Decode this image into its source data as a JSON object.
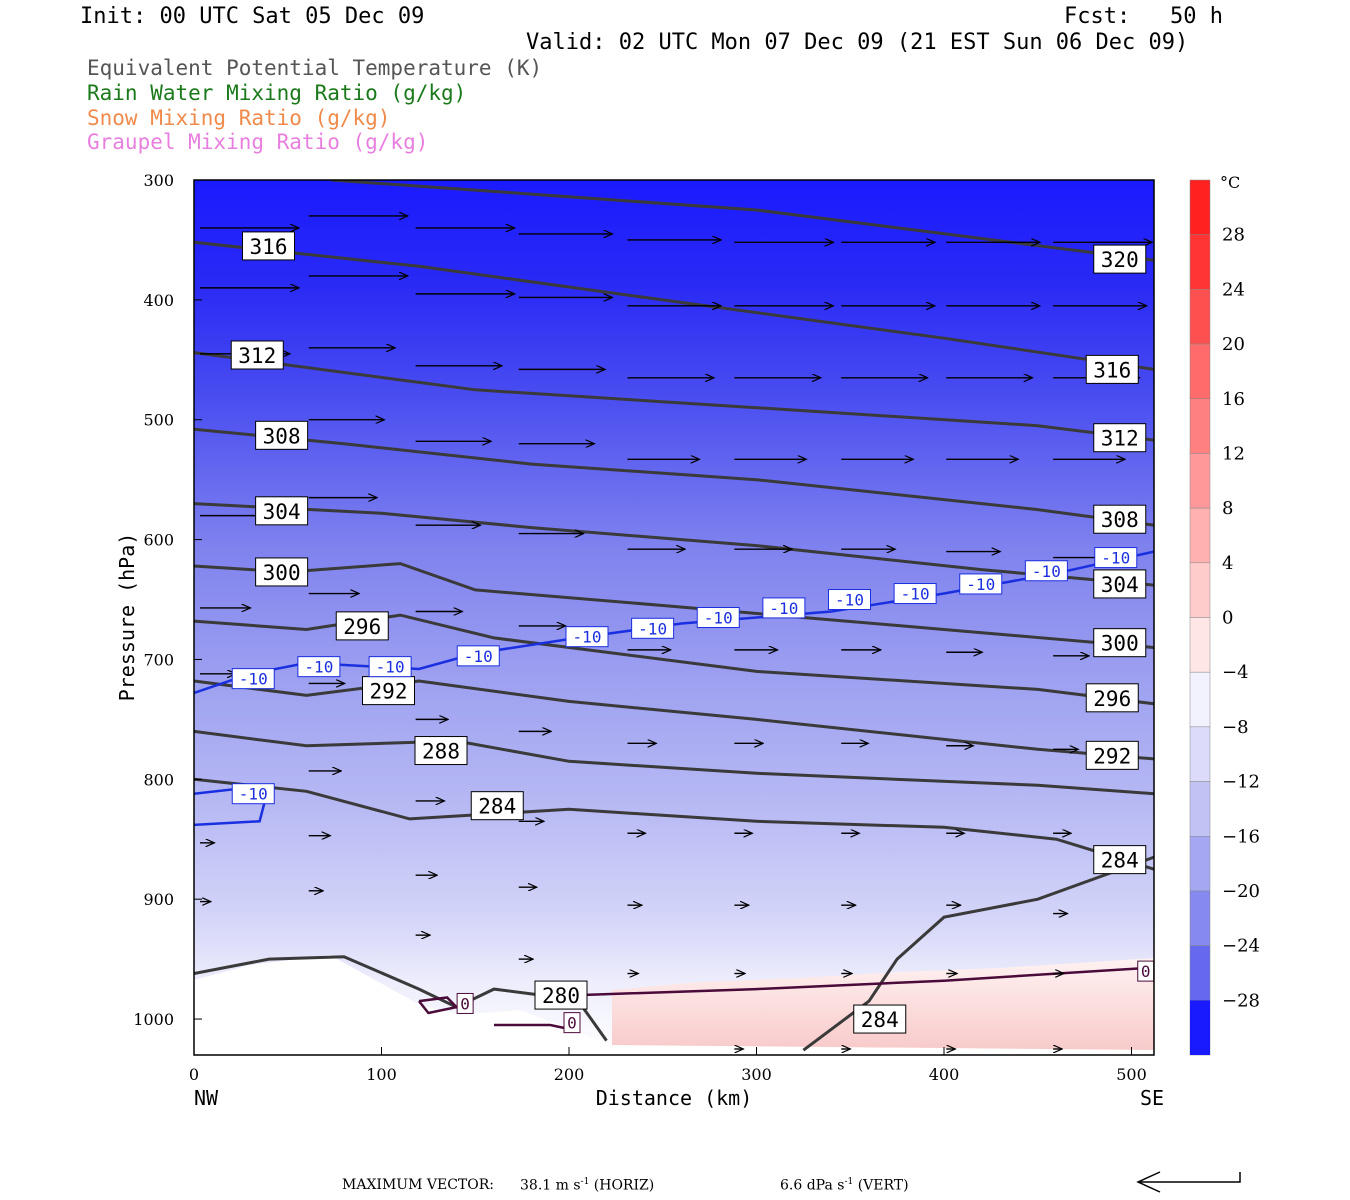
{
  "header": {
    "init": "Init: 00 UTC Sat 05 Dec 09",
    "fcst": "Fcst:   50 h",
    "valid": "Valid: 02 UTC Mon 07 Dec 09 (21 EST Sun 06 Dec 09)"
  },
  "legend": [
    {
      "label": "Equivalent Potential Temperature (K)",
      "color": "#555555"
    },
    {
      "label": "Rain Water Mixing Ratio (g/kg)",
      "color": "#1a7a1a"
    },
    {
      "label": "Snow Mixing Ratio (g/kg)",
      "color": "#f08a4b"
    },
    {
      "label": "Graupel Mixing Ratio (g/kg)",
      "color": "#e87fe0"
    }
  ],
  "footer": {
    "max_vector_label": "MAXIMUM VECTOR:",
    "horiz": "38.1 m s",
    "horiz_unit": "(HORIZ)",
    "vert": "6.6 dPa s",
    "vert_unit": "(VERT)"
  },
  "chart_data": {
    "type": "cross-section contour",
    "xlabel": "Distance (km)",
    "ylabel": "Pressure (hPa)",
    "x_ticks": [
      0,
      100,
      200,
      300,
      400,
      500
    ],
    "y_ticks": [
      300,
      400,
      500,
      600,
      700,
      800,
      900,
      1000
    ],
    "xlim": [
      0,
      512
    ],
    "ylim": [
      1030,
      300
    ],
    "x_endpoints": {
      "left": "NW",
      "right": "SE"
    },
    "colorbar": {
      "unit": "°C",
      "labels": [
        28,
        24,
        20,
        16,
        12,
        8,
        4,
        0,
        -4,
        -8,
        -12,
        -16,
        -20,
        -24,
        -28
      ]
    },
    "theta_e_contours": [
      {
        "value": 320,
        "points": [
          [
            73,
            300
          ],
          [
            300,
            325
          ],
          [
            512,
            367
          ]
        ]
      },
      {
        "value": 316,
        "points": [
          [
            0,
            352
          ],
          [
            120,
            372
          ],
          [
            250,
            400
          ],
          [
            400,
            432
          ],
          [
            512,
            458
          ]
        ]
      },
      {
        "value": 312,
        "points": [
          [
            0,
            444
          ],
          [
            150,
            475
          ],
          [
            300,
            490
          ],
          [
            450,
            505
          ],
          [
            512,
            517
          ]
        ]
      },
      {
        "value": 308,
        "points": [
          [
            0,
            508
          ],
          [
            80,
            520
          ],
          [
            180,
            537
          ],
          [
            300,
            550
          ],
          [
            450,
            575
          ],
          [
            512,
            588
          ]
        ]
      },
      {
        "value": 304,
        "points": [
          [
            0,
            570
          ],
          [
            100,
            578
          ],
          [
            180,
            590
          ],
          [
            300,
            605
          ],
          [
            420,
            625
          ],
          [
            512,
            638
          ]
        ]
      },
      {
        "value": 300,
        "points": [
          [
            0,
            622
          ],
          [
            50,
            627
          ],
          [
            110,
            620
          ],
          [
            150,
            642
          ],
          [
            250,
            655
          ],
          [
            400,
            675
          ],
          [
            512,
            690
          ]
        ]
      },
      {
        "value": 296,
        "points": [
          [
            0,
            668
          ],
          [
            60,
            675
          ],
          [
            110,
            663
          ],
          [
            160,
            682
          ],
          [
            300,
            710
          ],
          [
            450,
            725
          ],
          [
            512,
            737
          ]
        ]
      },
      {
        "value": 292,
        "points": [
          [
            0,
            718
          ],
          [
            60,
            730
          ],
          [
            120,
            718
          ],
          [
            200,
            735
          ],
          [
            300,
            750
          ],
          [
            450,
            775
          ],
          [
            512,
            783
          ]
        ]
      },
      {
        "value": 288,
        "points": [
          [
            0,
            760
          ],
          [
            60,
            772
          ],
          [
            140,
            768
          ],
          [
            200,
            785
          ],
          [
            300,
            795
          ],
          [
            450,
            805
          ],
          [
            512,
            812
          ]
        ]
      },
      {
        "value": 284,
        "points": [
          [
            0,
            800
          ],
          [
            60,
            810
          ],
          [
            115,
            833
          ],
          [
            200,
            825
          ],
          [
            300,
            835
          ],
          [
            400,
            840
          ],
          [
            460,
            850
          ],
          [
            512,
            875
          ]
        ]
      },
      {
        "value": 280,
        "points": [
          [
            0,
            962
          ],
          [
            40,
            950
          ],
          [
            80,
            948
          ],
          [
            120,
            975
          ],
          [
            140,
            990
          ],
          [
            160,
            975
          ],
          [
            185,
            980
          ],
          [
            205,
            985
          ],
          [
            220,
            1018
          ]
        ]
      },
      {
        "value": 284,
        "points": [
          [
            325,
            1026
          ],
          [
            360,
            985
          ],
          [
            375,
            950
          ],
          [
            400,
            915
          ],
          [
            450,
            900
          ],
          [
            512,
            865
          ]
        ]
      }
    ],
    "temperature_minus10": [
      {
        "value": -10,
        "points": [
          [
            0,
            728
          ],
          [
            30,
            712
          ],
          [
            60,
            703
          ],
          [
            120,
            708
          ],
          [
            150,
            695
          ],
          [
            200,
            683
          ],
          [
            260,
            670
          ],
          [
            340,
            660
          ],
          [
            400,
            645
          ],
          [
            460,
            628
          ],
          [
            512,
            610
          ]
        ]
      },
      {
        "value": -10,
        "points": [
          [
            0,
            812
          ],
          [
            40,
            805
          ],
          [
            35,
            835
          ],
          [
            0,
            838
          ]
        ]
      }
    ],
    "temperature_zero": [
      {
        "value": 0,
        "points": [
          [
            205,
            980
          ],
          [
            300,
            975
          ],
          [
            400,
            968
          ],
          [
            512,
            957
          ]
        ]
      },
      {
        "value": 0,
        "points": [
          [
            120,
            985
          ],
          [
            135,
            982
          ],
          [
            140,
            990
          ],
          [
            125,
            995
          ],
          [
            120,
            985
          ]
        ]
      },
      {
        "value": 0,
        "points": [
          [
            160,
            1005
          ],
          [
            190,
            1005
          ],
          [
            205,
            1010
          ]
        ]
      }
    ],
    "contour_labels": [
      {
        "text": "316",
        "x": 28,
        "y": 355
      },
      {
        "text": "320",
        "x": 482,
        "y": 366
      },
      {
        "text": "312",
        "x": 22,
        "y": 446
      },
      {
        "text": "316",
        "x": 478,
        "y": 458
      },
      {
        "text": "308",
        "x": 35,
        "y": 513
      },
      {
        "text": "312",
        "x": 482,
        "y": 515
      },
      {
        "text": "304",
        "x": 35,
        "y": 576
      },
      {
        "text": "308",
        "x": 482,
        "y": 583
      },
      {
        "text": "300",
        "x": 35,
        "y": 627
      },
      {
        "text": "304",
        "x": 482,
        "y": 637
      },
      {
        "text": "296",
        "x": 78,
        "y": 672
      },
      {
        "text": "300",
        "x": 482,
        "y": 686
      },
      {
        "text": "292",
        "x": 92,
        "y": 726
      },
      {
        "text": "296",
        "x": 478,
        "y": 732
      },
      {
        "text": "288",
        "x": 120,
        "y": 776
      },
      {
        "text": "292",
        "x": 478,
        "y": 780
      },
      {
        "text": "284",
        "x": 150,
        "y": 822
      },
      {
        "text": "284",
        "x": 482,
        "y": 867
      },
      {
        "text": "280",
        "x": 184,
        "y": 980
      },
      {
        "text": "284",
        "x": 354,
        "y": 1000
      }
    ],
    "temp_labels": [
      {
        "text": "-10",
        "x": 22,
        "y": 716
      },
      {
        "text": "-10",
        "x": 57,
        "y": 706
      },
      {
        "text": "-10",
        "x": 95,
        "y": 706
      },
      {
        "text": "-10",
        "x": 142,
        "y": 697
      },
      {
        "text": "-10",
        "x": 200,
        "y": 681
      },
      {
        "text": "-10",
        "x": 235,
        "y": 674
      },
      {
        "text": "-10",
        "x": 270,
        "y": 665
      },
      {
        "text": "-10",
        "x": 305,
        "y": 657
      },
      {
        "text": "-10",
        "x": 340,
        "y": 650
      },
      {
        "text": "-10",
        "x": 375,
        "y": 645
      },
      {
        "text": "-10",
        "x": 410,
        "y": 637
      },
      {
        "text": "-10",
        "x": 445,
        "y": 626
      },
      {
        "text": "-10",
        "x": 482,
        "y": 615
      },
      {
        "text": "-10",
        "x": 22,
        "y": 812
      },
      {
        "text": "0",
        "x": 135,
        "y": 987
      },
      {
        "text": "0",
        "x": 192,
        "y": 1003
      },
      {
        "text": "0",
        "x": 498,
        "y": 960
      }
    ],
    "wind_vectors": [
      {
        "x": 0,
        "p": 340,
        "u": 55,
        "w": 0
      },
      {
        "x": 58,
        "p": 330,
        "u": 55,
        "w": 0
      },
      {
        "x": 115,
        "p": 340,
        "u": 55,
        "w": 0
      },
      {
        "x": 170,
        "p": 345,
        "u": 52,
        "w": 0
      },
      {
        "x": 228,
        "p": 350,
        "u": 52,
        "w": 0
      },
      {
        "x": 285,
        "p": 352,
        "u": 55,
        "w": 0
      },
      {
        "x": 342,
        "p": 352,
        "u": 52,
        "w": 0
      },
      {
        "x": 398,
        "p": 352,
        "u": 52,
        "w": 0
      },
      {
        "x": 455,
        "p": 352,
        "u": 55,
        "w": 0
      },
      {
        "x": 0,
        "p": 390,
        "u": 55,
        "w": 0
      },
      {
        "x": 58,
        "p": 380,
        "u": 55,
        "w": 0
      },
      {
        "x": 115,
        "p": 395,
        "u": 55,
        "w": 0
      },
      {
        "x": 170,
        "p": 398,
        "u": 52,
        "w": 0
      },
      {
        "x": 228,
        "p": 405,
        "u": 52,
        "w": 0
      },
      {
        "x": 285,
        "p": 405,
        "u": 55,
        "w": 0
      },
      {
        "x": 342,
        "p": 405,
        "u": 52,
        "w": 0
      },
      {
        "x": 398,
        "p": 405,
        "u": 52,
        "w": 0
      },
      {
        "x": 455,
        "p": 405,
        "u": 52,
        "w": 0
      },
      {
        "x": 0,
        "p": 445,
        "u": 50,
        "w": 0
      },
      {
        "x": 58,
        "p": 440,
        "u": 48,
        "w": 0
      },
      {
        "x": 115,
        "p": 455,
        "u": 48,
        "w": 0
      },
      {
        "x": 170,
        "p": 458,
        "u": 48,
        "w": 0
      },
      {
        "x": 228,
        "p": 465,
        "u": 48,
        "w": 0
      },
      {
        "x": 285,
        "p": 465,
        "u": 48,
        "w": 0
      },
      {
        "x": 342,
        "p": 465,
        "u": 48,
        "w": 0
      },
      {
        "x": 398,
        "p": 465,
        "u": 48,
        "w": 0
      },
      {
        "x": 455,
        "p": 465,
        "u": 48,
        "w": 0
      },
      {
        "x": 58,
        "p": 500,
        "u": 42,
        "w": 0
      },
      {
        "x": 115,
        "p": 518,
        "u": 42,
        "w": 0
      },
      {
        "x": 170,
        "p": 520,
        "u": 42,
        "w": 0
      },
      {
        "x": 228,
        "p": 533,
        "u": 40,
        "w": 0
      },
      {
        "x": 285,
        "p": 533,
        "u": 40,
        "w": 0
      },
      {
        "x": 342,
        "p": 533,
        "u": 40,
        "w": 0
      },
      {
        "x": 398,
        "p": 533,
        "u": 40,
        "w": 0
      },
      {
        "x": 455,
        "p": 533,
        "u": 40,
        "w": 0
      },
      {
        "x": 0,
        "p": 580,
        "u": 38,
        "w": 0
      },
      {
        "x": 58,
        "p": 565,
        "u": 38,
        "w": 0
      },
      {
        "x": 115,
        "p": 588,
        "u": 36,
        "w": 0
      },
      {
        "x": 170,
        "p": 595,
        "u": 36,
        "w": 0
      },
      {
        "x": 228,
        "p": 608,
        "u": 32,
        "w": 0
      },
      {
        "x": 285,
        "p": 608,
        "u": 32,
        "w": 0
      },
      {
        "x": 342,
        "p": 608,
        "u": 30,
        "w": 0
      },
      {
        "x": 398,
        "p": 610,
        "u": 30,
        "w": 0
      },
      {
        "x": 455,
        "p": 615,
        "u": 28,
        "w": 0
      },
      {
        "x": 0,
        "p": 657,
        "u": 28,
        "w": 0
      },
      {
        "x": 58,
        "p": 645,
        "u": 28,
        "w": 0
      },
      {
        "x": 115,
        "p": 660,
        "u": 26,
        "w": 0
      },
      {
        "x": 170,
        "p": 672,
        "u": 26,
        "w": 0
      },
      {
        "x": 228,
        "p": 692,
        "u": 24,
        "w": 0
      },
      {
        "x": 285,
        "p": 692,
        "u": 24,
        "w": 0
      },
      {
        "x": 342,
        "p": 692,
        "u": 22,
        "w": 0
      },
      {
        "x": 398,
        "p": 694,
        "u": 20,
        "w": 0
      },
      {
        "x": 455,
        "p": 697,
        "u": 20,
        "w": 0
      },
      {
        "x": 0,
        "p": 712,
        "u": 20,
        "w": 0
      },
      {
        "x": 58,
        "p": 720,
        "u": 20,
        "w": 0
      },
      {
        "x": 115,
        "p": 750,
        "u": 18,
        "w": 0
      },
      {
        "x": 170,
        "p": 760,
        "u": 18,
        "w": 0
      },
      {
        "x": 228,
        "p": 770,
        "u": 16,
        "w": 0
      },
      {
        "x": 285,
        "p": 770,
        "u": 16,
        "w": 0
      },
      {
        "x": 342,
        "p": 770,
        "u": 15,
        "w": 0
      },
      {
        "x": 398,
        "p": 772,
        "u": 15,
        "w": 0
      },
      {
        "x": 455,
        "p": 775,
        "u": 14,
        "w": 0
      },
      {
        "x": 58,
        "p": 793,
        "u": 18,
        "w": 0
      },
      {
        "x": 115,
        "p": 818,
        "u": 16,
        "w": 0
      },
      {
        "x": 170,
        "p": 835,
        "u": 14,
        "w": 0
      },
      {
        "x": 228,
        "p": 845,
        "u": 10,
        "w": 0
      },
      {
        "x": 285,
        "p": 845,
        "u": 10,
        "w": 0
      },
      {
        "x": 342,
        "p": 845,
        "u": 10,
        "w": 0
      },
      {
        "x": 398,
        "p": 845,
        "u": 10,
        "w": 0
      },
      {
        "x": 455,
        "p": 845,
        "u": 10,
        "w": 0
      },
      {
        "x": 0,
        "p": 853,
        "u": 8,
        "w": 0
      },
      {
        "x": 58,
        "p": 847,
        "u": 12,
        "w": 0
      },
      {
        "x": 115,
        "p": 880,
        "u": 12,
        "w": 0
      },
      {
        "x": 170,
        "p": 890,
        "u": 10,
        "w": 0
      },
      {
        "x": 228,
        "p": 905,
        "u": 8,
        "w": 0
      },
      {
        "x": 285,
        "p": 905,
        "u": 8,
        "w": 0
      },
      {
        "x": 342,
        "p": 905,
        "u": 8,
        "w": 0
      },
      {
        "x": 398,
        "p": 905,
        "u": 8,
        "w": 0
      },
      {
        "x": 455,
        "p": 912,
        "u": 8,
        "w": 0
      },
      {
        "x": 0,
        "p": 902,
        "u": 6,
        "w": 0
      },
      {
        "x": 58,
        "p": 893,
        "u": 8,
        "w": 0
      },
      {
        "x": 115,
        "p": 930,
        "u": 8,
        "w": 0
      },
      {
        "x": 170,
        "p": 950,
        "u": 8,
        "w": 0
      },
      {
        "x": 228,
        "p": 962,
        "u": 6,
        "w": 0
      },
      {
        "x": 285,
        "p": 962,
        "u": 6,
        "w": 0
      },
      {
        "x": 342,
        "p": 962,
        "u": 6,
        "w": 0
      },
      {
        "x": 398,
        "p": 962,
        "u": 6,
        "w": 0
      },
      {
        "x": 455,
        "p": 962,
        "u": 6,
        "w": 0
      },
      {
        "x": 285,
        "p": 1025,
        "u": 5,
        "w": 0
      },
      {
        "x": 342,
        "p": 1025,
        "u": 5,
        "w": 0
      },
      {
        "x": 398,
        "p": 1025,
        "u": 5,
        "w": 0
      },
      {
        "x": 455,
        "p": 1025,
        "u": 5,
        "w": 0
      }
    ]
  }
}
